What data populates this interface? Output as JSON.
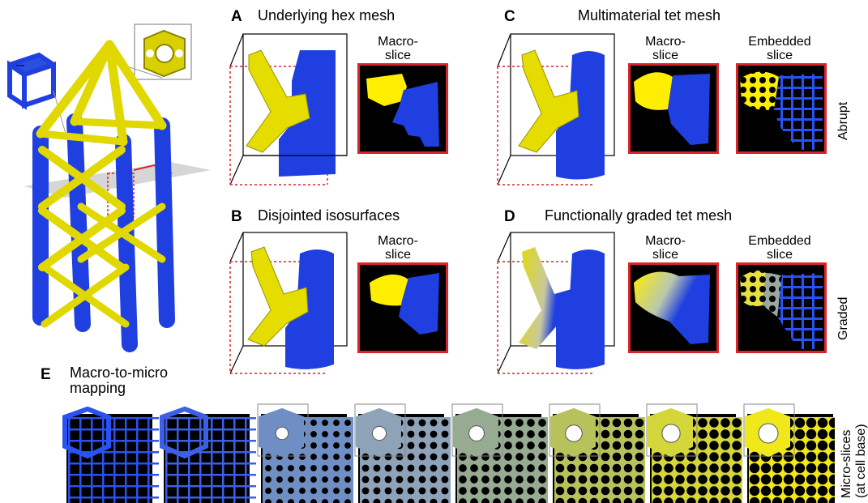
{
  "panels": {
    "a": {
      "letter": "A",
      "title": "Underlying hex mesh",
      "macro_label_1": "Macro-",
      "macro_label_2": "slice"
    },
    "b": {
      "letter": "B",
      "title": "Disjointed isosurfaces",
      "macro_label_1": "Macro-",
      "macro_label_2": "slice"
    },
    "c": {
      "letter": "C",
      "title": "Multimaterial tet mesh",
      "macro_label_1": "Macro-",
      "macro_label_2": "slice",
      "embedded_label_1": "Embedded",
      "embedded_label_2": "slice",
      "side_label": "Abrupt"
    },
    "d": {
      "letter": "D",
      "title": "Functionally graded tet mesh",
      "macro_label_1": "Macro-",
      "macro_label_2": "slice",
      "embedded_label_1": "Embedded",
      "embedded_label_2": "slice",
      "side_label": "Graded"
    },
    "e": {
      "letter": "E",
      "title_1": "Macro-to-micro",
      "title_2": "mapping",
      "side_label_1": "Micro-slices",
      "side_label_2": "(at cell base)"
    }
  },
  "colors": {
    "blue": "#1f3fe0",
    "yellow": "#e8e000",
    "slice_border": "#d9252a",
    "micro_strip": [
      "#2a52f0",
      "#3d5fe6",
      "#6e8ec4",
      "#8ea2b8",
      "#97ab92",
      "#b8c25c",
      "#d4d63a",
      "#f0e81a"
    ]
  }
}
